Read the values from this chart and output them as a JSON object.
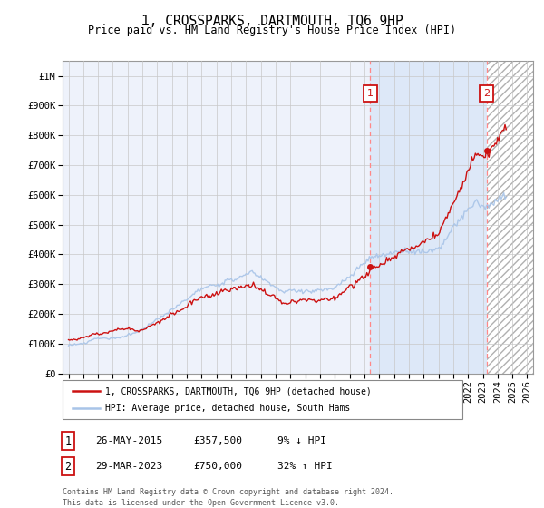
{
  "title": "1, CROSSPARKS, DARTMOUTH, TQ6 9HP",
  "subtitle": "Price paid vs. HM Land Registry's House Price Index (HPI)",
  "ylabel_ticks": [
    "£0",
    "£100K",
    "£200K",
    "£300K",
    "£400K",
    "£500K",
    "£600K",
    "£700K",
    "£800K",
    "£900K",
    "£1M"
  ],
  "ytick_values": [
    0,
    100000,
    200000,
    300000,
    400000,
    500000,
    600000,
    700000,
    800000,
    900000,
    1000000
  ],
  "xlim_left": 1994.6,
  "xlim_right": 2026.4,
  "ylim_top": 1050000,
  "hpi_color": "#a8c4e8",
  "price_color": "#cc1111",
  "sale1_price": 357500,
  "sale1_year": 2015.4,
  "sale2_price": 750000,
  "sale2_year": 2023.25,
  "sale1_date": "26-MAY-2015",
  "sale2_date": "29-MAR-2023",
  "sale1_hpi_pct": "9% ↓ HPI",
  "sale2_hpi_pct": "32% ↑ HPI",
  "legend_line1": "1, CROSSPARKS, DARTMOUTH, TQ6 9HP (detached house)",
  "legend_line2": "HPI: Average price, detached house, South Hams",
  "footnote1": "Contains HM Land Registry data © Crown copyright and database right 2024.",
  "footnote2": "This data is licensed under the Open Government Licence v3.0.",
  "bg_color": "#eef2fb",
  "shade_color": "#dde8f8",
  "grid_color": "#c8c8c8",
  "dashed_color": "#ff8888",
  "hatch_area_color": "#e8e8e8",
  "title_fontsize": 10.5,
  "subtitle_fontsize": 8.5,
  "tick_fontsize": 7.5
}
